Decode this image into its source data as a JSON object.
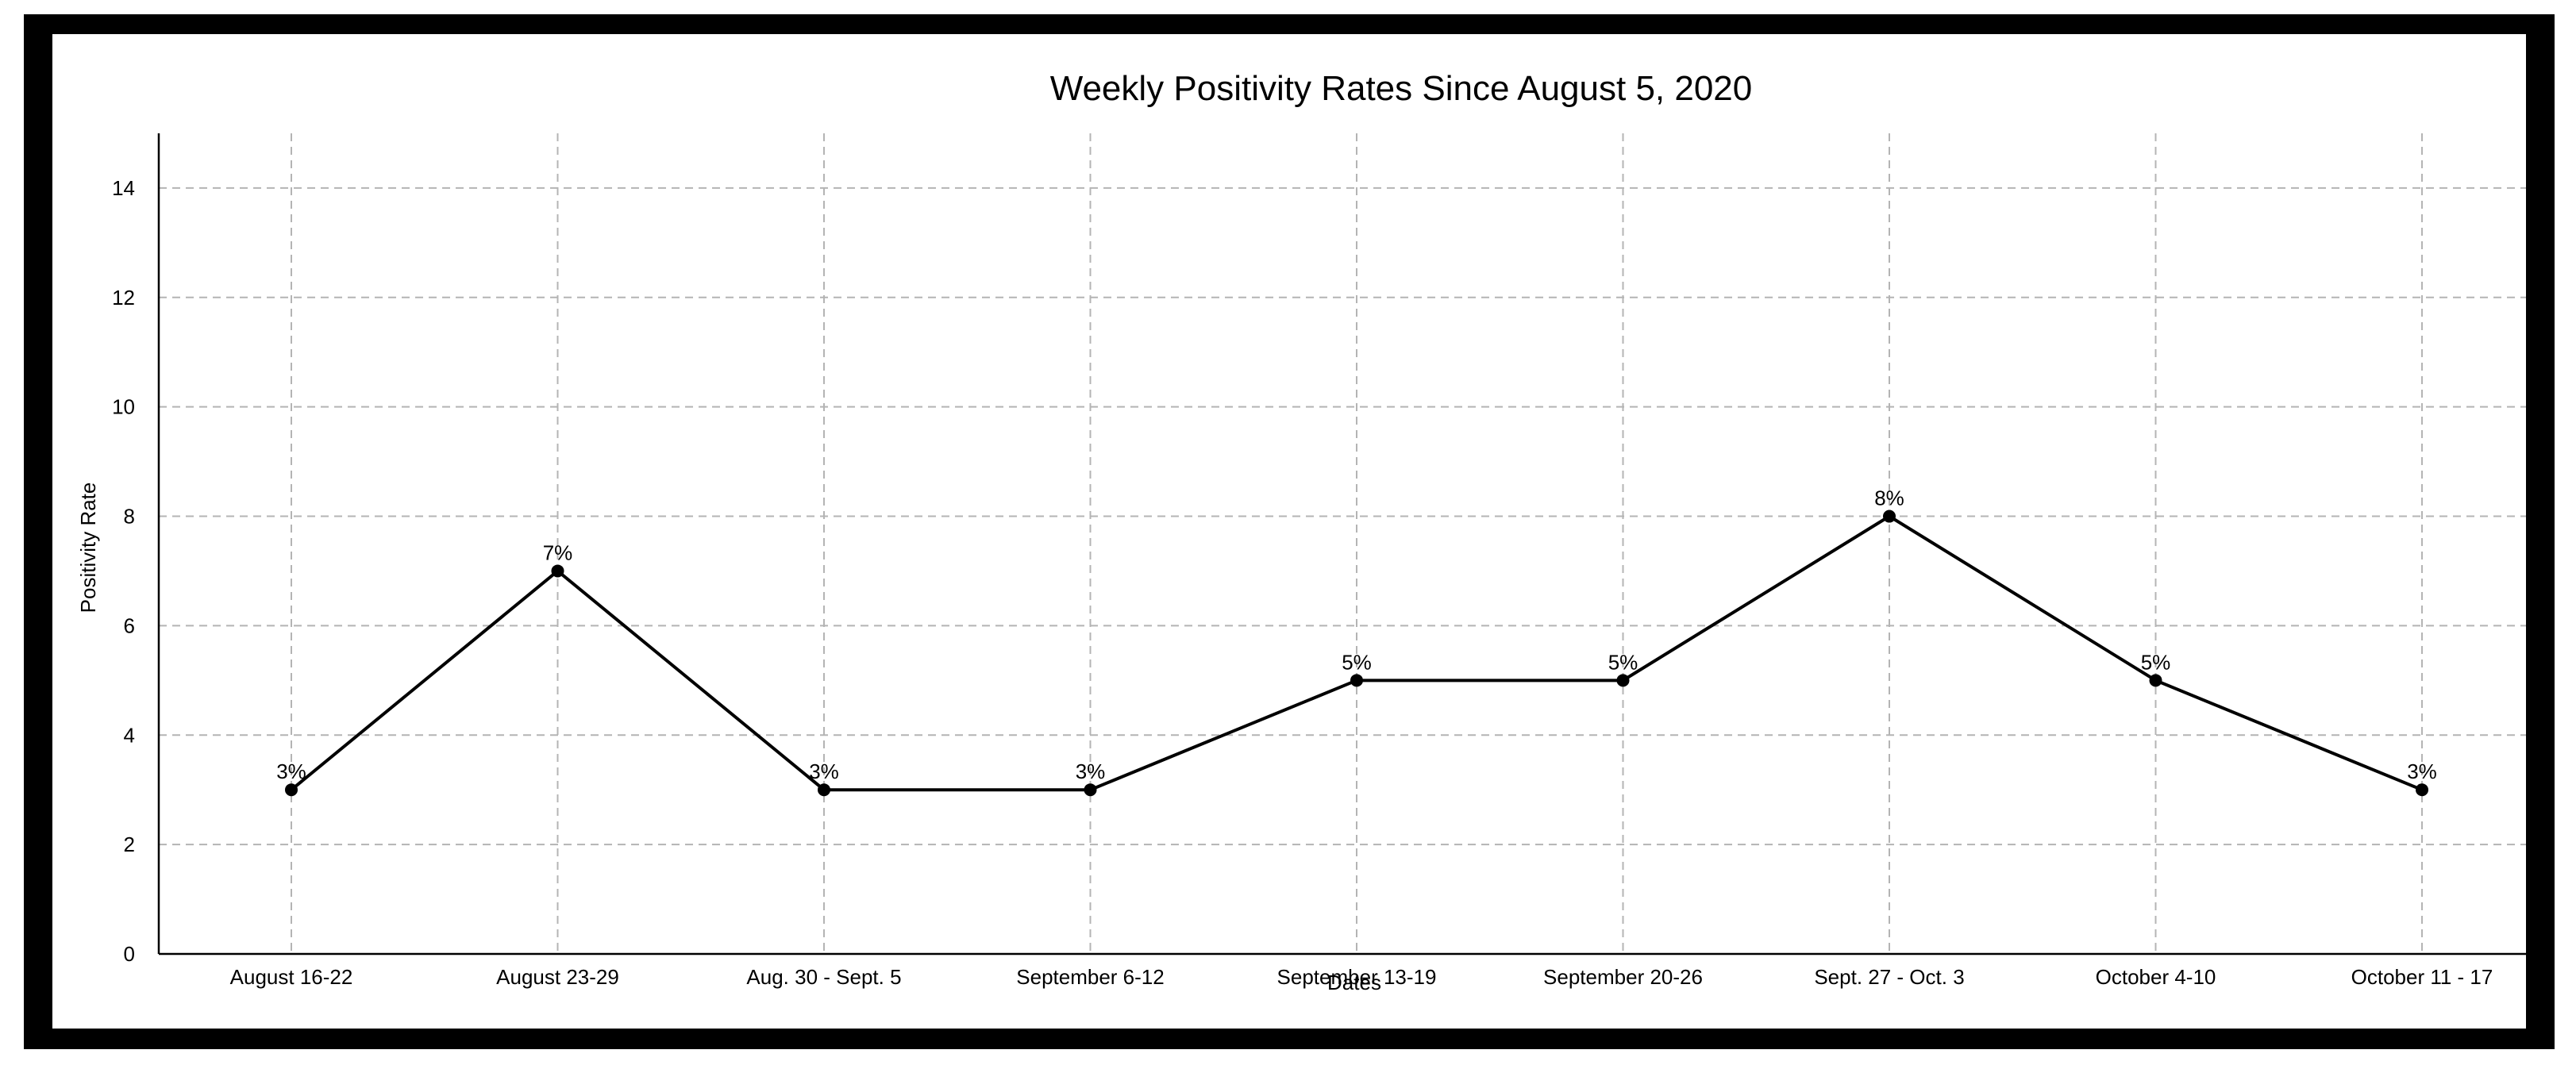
{
  "chart_data": {
    "type": "line",
    "title": "Weekly Positivity Rates Since August 5, 2020",
    "xlabel": "Dates",
    "ylabel": "Positivity Rate",
    "categories": [
      "August 16-22",
      "August 23-29",
      "Aug. 30 - Sept. 5",
      "September 6-12",
      "September 13-19",
      "September 20-26",
      "Sept. 27 - Oct. 3",
      "October 4-10",
      "October 11 - 17"
    ],
    "values": [
      3,
      7,
      3,
      3,
      5,
      5,
      8,
      5,
      3
    ],
    "data_labels": [
      "3%",
      "7%",
      "3%",
      "3%",
      "5%",
      "5%",
      "8%",
      "5%",
      "3%"
    ],
    "ylim": [
      0,
      15
    ],
    "yticks": [
      0,
      2,
      4,
      6,
      8,
      10,
      12,
      14
    ],
    "grid": true,
    "line_color": "#000000",
    "grid_color": "#b4b4b4"
  }
}
